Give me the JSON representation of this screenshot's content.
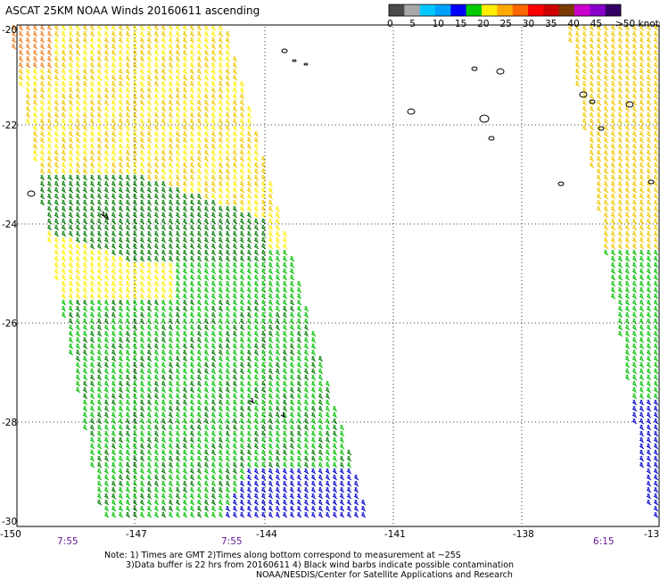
{
  "title": "ASCAT 25KM NOAA Winds 20160611 ascending",
  "legend": {
    "colors": [
      "#4a4a4a",
      "#a8a8a8",
      "#00c8ff",
      "#00a0ff",
      "#0000ff",
      "#00cc00",
      "#ffee00",
      "#ffaa00",
      "#ff6600",
      "#ff0000",
      "#cc0000",
      "#7a3b00",
      "#cc00cc",
      "#8800cc",
      "#330066"
    ],
    "labels": [
      "0",
      "5",
      "10",
      "15",
      "20",
      "25",
      "30",
      "35",
      "40",
      "45",
      ">50 knots"
    ]
  },
  "axes": {
    "lat_labels": [
      "-20",
      "-22",
      "-24",
      "-26",
      "-28",
      "-30"
    ],
    "lon_labels": [
      "-150",
      "-147",
      "-144",
      "-141",
      "-138",
      "-13"
    ]
  },
  "pass_times": [
    "7:55",
    "7:55",
    "6:15"
  ],
  "notes": [
    "Note: 1) Times are GMT 2)Times along bottom correspond to measurement at ~25S",
    "3)Data buffer is 22 hrs from 20160611 4) Black wind barbs indicate possible contamination",
    "NOAA/NESDIS/Center for Satellite Applications and Research"
  ],
  "barb_colors": {
    "orange": "#f08020",
    "gold": "#f0c800",
    "yellow": "#ffee00",
    "green": "#00c000",
    "dark_green": "#007a00",
    "blue": "#0000cc",
    "black": "#000000"
  }
}
